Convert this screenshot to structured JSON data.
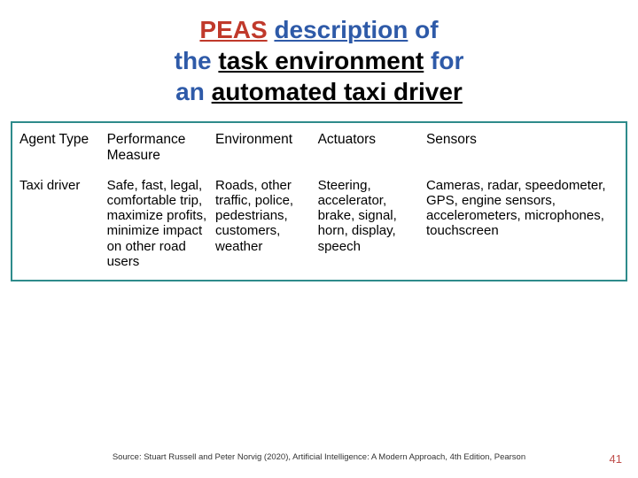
{
  "title": {
    "parts": [
      {
        "text": "PEAS",
        "classes": "red underline"
      },
      {
        "text": " ",
        "classes": ""
      },
      {
        "text": "description",
        "classes": "blue underline"
      },
      {
        "text": " ",
        "classes": ""
      },
      {
        "text": "of",
        "classes": "blue"
      },
      {
        "text": "\n",
        "classes": ""
      },
      {
        "text": "the",
        "classes": "blue"
      },
      {
        "text": " ",
        "classes": ""
      },
      {
        "text": "task environment",
        "classes": "black underline"
      },
      {
        "text": " ",
        "classes": ""
      },
      {
        "text": "for",
        "classes": "blue"
      },
      {
        "text": "\n",
        "classes": ""
      },
      {
        "text": "an",
        "classes": "blue"
      },
      {
        "text": " ",
        "classes": ""
      },
      {
        "text": "automated taxi driver",
        "classes": "black underline"
      }
    ]
  },
  "table": {
    "columns": [
      "Agent Type",
      "Performance Measure",
      "Environment",
      "Actuators",
      "Sensors"
    ],
    "col_widths": [
      "14.5%",
      "18%",
      "17%",
      "18%",
      "32.5%"
    ],
    "rows": [
      [
        "Taxi driver",
        "Safe, fast, legal, comfortable trip, maximize profits, minimize impact on other road users",
        "Roads, other traffic, police, pedestrians, customers, weather",
        "Steering, accelerator, brake, signal, horn, display, speech",
        "Cameras, radar, speedometer, GPS, engine sensors, accelerometers, microphones, touchscreen"
      ]
    ],
    "border_color": "#2e8b8b",
    "header_fontsize": 15.5,
    "cell_fontsize": 15
  },
  "source": "Source: Stuart Russell and Peter Norvig (2020), Artificial Intelligence: A Modern Approach, 4th Edition, Pearson",
  "page_number": "41",
  "colors": {
    "red": "#c0392b",
    "blue": "#2e5aa8",
    "black": "#000000",
    "border": "#2e8b8b",
    "pagenum": "#c0504d",
    "background": "#ffffff"
  }
}
